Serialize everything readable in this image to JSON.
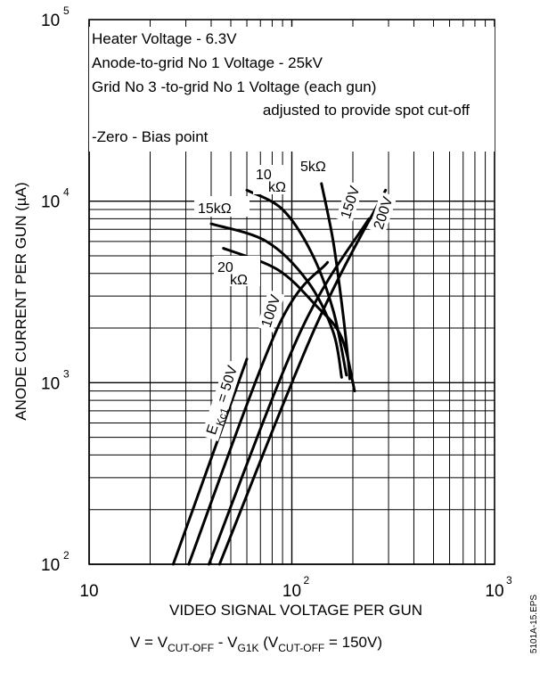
{
  "chart_data": {
    "type": "line",
    "title": "",
    "x_axis": {
      "label": "VIDEO SIGNAL VOLTAGE PER GUN",
      "formula": {
        "v": "V = V",
        "cutoff_sub": "CUT-OFF",
        "minus": " - V",
        "g1k_sub": "G1K",
        "paren_open": "  (V",
        "paren_sub": "CUT-OFF",
        "paren_close": "  = 150V)"
      },
      "scale": "log",
      "range": [
        10,
        1000
      ],
      "ticks": [
        {
          "value": 10,
          "label": "10",
          "exp": ""
        },
        {
          "value": 100,
          "label": "10",
          "exp": "2"
        },
        {
          "value": 1000,
          "label": "10",
          "exp": "3"
        }
      ]
    },
    "y_axis": {
      "label": "ANODE CURRENT PER GUN (µA)",
      "scale": "log",
      "range": [
        100,
        100000
      ],
      "ticks": [
        {
          "value": 100,
          "label": "10",
          "exp": "2"
        },
        {
          "value": 1000,
          "label": "10",
          "exp": "3"
        },
        {
          "value": 10000,
          "label": "10",
          "exp": "4"
        },
        {
          "value": 100000,
          "label": "10",
          "exp": "5"
        }
      ]
    },
    "grid": true,
    "notes": [
      "Heater Voltage - 6.3V",
      "Anode-to-grid No 1 Voltage - 25kV",
      "Grid No 3 -to-grid No 1 Voltage (each gun)",
      "adjusted to provide spot cut-off",
      "-Zero - Bias point"
    ],
    "drive_series": [
      {
        "name": "E_KC1 = 50V",
        "points": [
          [
            26,
            100
          ],
          [
            60,
            1350
          ]
        ]
      },
      {
        "name": "100V",
        "points": [
          [
            31,
            100
          ],
          [
            85,
            2000
          ],
          [
            150,
            4600
          ]
        ]
      },
      {
        "name": "150V",
        "points": [
          [
            39,
            100
          ],
          [
            110,
            1900
          ],
          [
            240,
            8000
          ]
        ]
      },
      {
        "name": "200V",
        "points": [
          [
            44,
            100
          ],
          [
            130,
            2000
          ],
          [
            290,
            11500
          ]
        ]
      }
    ],
    "load_series": [
      {
        "name": "5kΩ",
        "points": [
          [
            140,
            12500
          ],
          [
            160,
            6000
          ],
          [
            178,
            2500
          ],
          [
            190,
            1300
          ],
          [
            193,
            1050
          ]
        ]
      },
      {
        "name": "10kΩ",
        "points": [
          [
            60,
            11500
          ],
          [
            90,
            9000
          ],
          [
            125,
            5200
          ],
          [
            160,
            2500
          ],
          [
            186,
            1100
          ]
        ]
      },
      {
        "name": "15kΩ",
        "points": [
          [
            40,
            7500
          ],
          [
            75,
            6000
          ],
          [
            120,
            3600
          ],
          [
            160,
            1900
          ],
          [
            176,
            1070
          ]
        ]
      },
      {
        "name": "20kΩ",
        "points": [
          [
            46,
            5500
          ],
          [
            85,
            4200
          ],
          [
            130,
            2700
          ],
          [
            175,
            1800
          ],
          [
            204,
            900
          ]
        ]
      }
    ],
    "labels": {
      "drive_50_main": "E",
      "drive_50_sub": "Kc1",
      "drive_50_tail": "= 50V",
      "drive_100": "100V",
      "drive_150": "150V",
      "drive_200": "200V",
      "load_5k": "5kΩ",
      "load_10k_a": "10",
      "load_10k_b": "kΩ",
      "load_15k": "15kΩ",
      "load_20k_a": "20",
      "load_20k_b": "kΩ"
    },
    "figure_id": "5101A-15.EPS"
  }
}
